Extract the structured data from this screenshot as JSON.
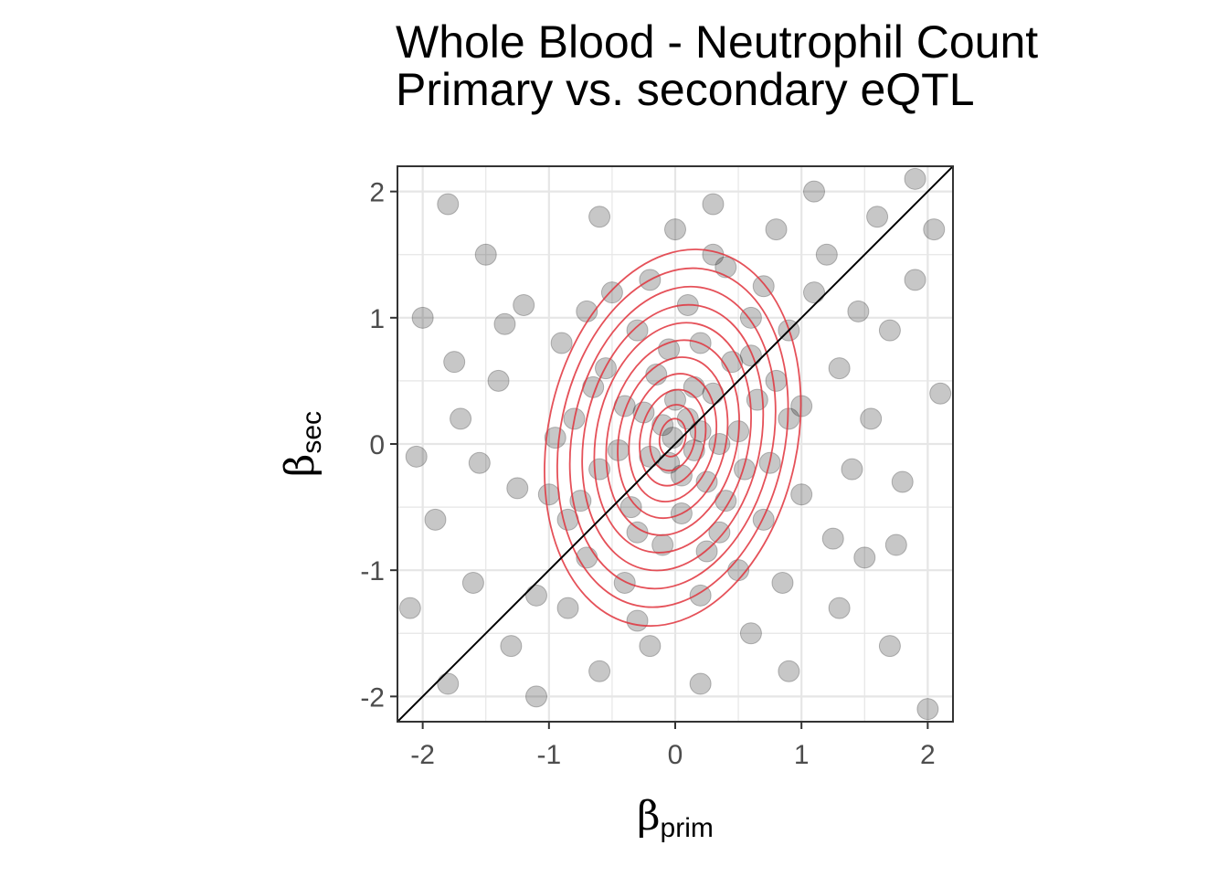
{
  "chart_data": {
    "type": "scatter",
    "title": "Whole Blood - Neutrophil Count",
    "subtitle": "Primary vs. secondary eQTL",
    "xlabel": {
      "symbol": "β",
      "subscript": "prim"
    },
    "ylabel": {
      "symbol": "β",
      "subscript": "sec"
    },
    "xlim": [
      -2.2,
      2.2
    ],
    "ylim": [
      -2.2,
      2.2
    ],
    "x_ticks": [
      "-2",
      "-1",
      "0",
      "1",
      "2"
    ],
    "y_ticks": [
      "2",
      "1",
      "0",
      "-1",
      "-2"
    ],
    "x_tick_values": [
      -2,
      -1,
      0,
      1,
      2
    ],
    "y_tick_values": [
      2,
      1,
      0,
      -1,
      -2
    ],
    "grid": true,
    "reference_line": {
      "type": "identity",
      "slope": 1,
      "intercept": 0
    },
    "point_color": "#000000",
    "point_opacity": 0.22,
    "density_contour_color": "#e0333c",
    "density_center": [
      -0.02,
      0.05
    ],
    "density_contour_levels": 11,
    "points": [
      [
        -0.02,
        0.05
      ],
      [
        0.1,
        0.2
      ],
      [
        -0.2,
        -0.1
      ],
      [
        0.3,
        0.4
      ],
      [
        -0.4,
        0.3
      ],
      [
        0.25,
        -0.3
      ],
      [
        -0.15,
        0.55
      ],
      [
        0.5,
        0.1
      ],
      [
        -0.6,
        -0.2
      ],
      [
        0.05,
        -0.55
      ],
      [
        0.45,
        0.65
      ],
      [
        -0.35,
        -0.5
      ],
      [
        0.65,
        0.35
      ],
      [
        -0.55,
        0.6
      ],
      [
        0.2,
        0.8
      ],
      [
        -0.1,
        -0.8
      ],
      [
        0.8,
        0.5
      ],
      [
        -0.8,
        0.2
      ],
      [
        0.35,
        -0.7
      ],
      [
        -0.3,
        0.9
      ],
      [
        0.1,
        1.1
      ],
      [
        -0.2,
        1.3
      ],
      [
        0.4,
        1.4
      ],
      [
        -0.5,
        1.2
      ],
      [
        0.6,
        1.0
      ],
      [
        0.9,
        0.9
      ],
      [
        -0.9,
        0.8
      ],
      [
        1.0,
        0.3
      ],
      [
        -1.0,
        -0.4
      ],
      [
        0.2,
        -1.2
      ],
      [
        -0.4,
        -1.1
      ],
      [
        0.5,
        -1.0
      ],
      [
        -0.7,
        -0.9
      ],
      [
        0.7,
        -0.6
      ],
      [
        1.2,
        1.5
      ],
      [
        -1.2,
        1.1
      ],
      [
        1.4,
        -0.2
      ],
      [
        -1.4,
        0.5
      ],
      [
        0.0,
        1.7
      ],
      [
        0.3,
        1.9
      ],
      [
        -0.6,
        1.8
      ],
      [
        0.8,
        1.7
      ],
      [
        1.1,
        2.0
      ],
      [
        1.6,
        1.8
      ],
      [
        1.9,
        2.1
      ],
      [
        -1.8,
        1.9
      ],
      [
        -1.5,
        1.5
      ],
      [
        -2.0,
        1.0
      ],
      [
        -1.7,
        0.2
      ],
      [
        -1.9,
        -0.6
      ],
      [
        -2.1,
        -1.3
      ],
      [
        -1.6,
        -1.1
      ],
      [
        -1.3,
        -1.6
      ],
      [
        -1.8,
        -1.9
      ],
      [
        -1.1,
        -2.0
      ],
      [
        -0.6,
        -1.8
      ],
      [
        -0.2,
        -1.6
      ],
      [
        0.2,
        -1.9
      ],
      [
        0.6,
        -1.5
      ],
      [
        0.9,
        -1.8
      ],
      [
        1.3,
        -1.3
      ],
      [
        1.7,
        -1.6
      ],
      [
        2.0,
        -2.1
      ],
      [
        1.5,
        -0.9
      ],
      [
        1.8,
        -0.3
      ],
      [
        2.1,
        0.4
      ],
      [
        1.7,
        0.9
      ],
      [
        1.3,
        0.6
      ],
      [
        1.9,
        1.3
      ],
      [
        1.0,
        -0.4
      ],
      [
        0.55,
        -0.2
      ],
      [
        -0.75,
        -0.45
      ],
      [
        0.15,
        0.45
      ],
      [
        -0.25,
        0.25
      ],
      [
        0.05,
        -0.25
      ],
      [
        0.35,
        0.0
      ],
      [
        -0.45,
        -0.05
      ],
      [
        0.25,
        -0.85
      ],
      [
        -0.05,
        0.75
      ],
      [
        0.6,
        0.7
      ],
      [
        -0.65,
        0.45
      ],
      [
        0.75,
        -0.15
      ],
      [
        -0.85,
        -0.6
      ],
      [
        0.4,
        -0.45
      ],
      [
        -0.3,
        -0.7
      ],
      [
        0.0,
        0.35
      ],
      [
        0.15,
        -0.05
      ],
      [
        -0.1,
        0.15
      ],
      [
        0.2,
        0.1
      ],
      [
        -0.05,
        -0.15
      ],
      [
        1.1,
        1.2
      ],
      [
        -1.1,
        -1.2
      ],
      [
        0.9,
        0.2
      ],
      [
        -0.95,
        0.05
      ],
      [
        0.3,
        1.5
      ],
      [
        -0.3,
        -1.4
      ],
      [
        1.45,
        1.05
      ],
      [
        -1.35,
        0.95
      ],
      [
        1.25,
        -0.75
      ],
      [
        -1.25,
        -0.35
      ],
      [
        1.55,
        0.2
      ],
      [
        -1.55,
        -0.15
      ],
      [
        0.7,
        1.25
      ],
      [
        -0.7,
        1.05
      ],
      [
        0.85,
        -1.1
      ],
      [
        -0.85,
        -1.3
      ],
      [
        1.75,
        -0.8
      ],
      [
        -1.75,
        0.65
      ],
      [
        2.05,
        1.7
      ],
      [
        -2.05,
        -0.1
      ]
    ]
  }
}
